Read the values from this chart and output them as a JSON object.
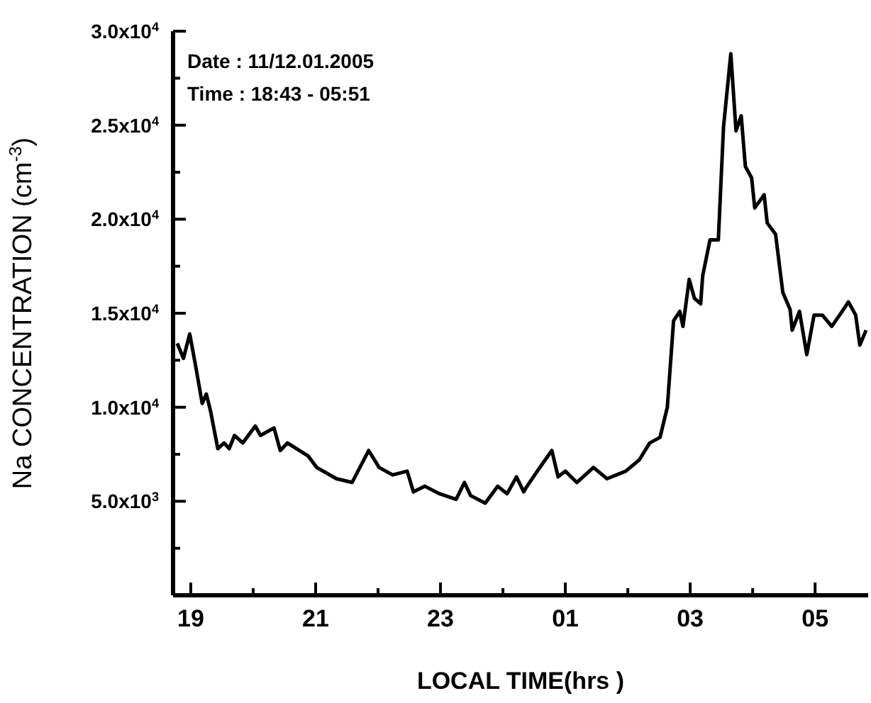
{
  "chart_data": {
    "type": "line",
    "xlabel": "LOCAL TIME(hrs )",
    "ylabel": "Na CONCENTRATION (cm$^{-3}$)",
    "annotations": [
      "Date : 11/12.01.2005",
      "Time : 18:43 - 05:51"
    ],
    "xlim": [
      "2005-01-11T18:43",
      "2005-01-12T05:51"
    ],
    "xticks": [
      {
        "value": "2005-01-11T19:00",
        "label": "19"
      },
      {
        "value": "2005-01-11T20:00",
        "label": null
      },
      {
        "value": "2005-01-11T21:00",
        "label": "21"
      },
      {
        "value": "2005-01-11T22:00",
        "label": null
      },
      {
        "value": "2005-01-11T23:00",
        "label": "23"
      },
      {
        "value": "2005-01-12T00:00",
        "label": null
      },
      {
        "value": "2005-01-12T01:00",
        "label": "01"
      },
      {
        "value": "2005-01-12T02:00",
        "label": null
      },
      {
        "value": "2005-01-12T03:00",
        "label": "03"
      },
      {
        "value": "2005-01-12T04:00",
        "label": null
      },
      {
        "value": "2005-01-12T05:00",
        "label": "05"
      }
    ],
    "ylim": [
      0,
      30000
    ],
    "yticks": [
      {
        "value": 2500,
        "label": null
      },
      {
        "value": 5000,
        "label": "5.0x10$^{3}$"
      },
      {
        "value": 7500,
        "label": null
      },
      {
        "value": 10000,
        "label": "1.0x10$^{4}$"
      },
      {
        "value": 12500,
        "label": null
      },
      {
        "value": 15000,
        "label": "1.5x10$^{4}$"
      },
      {
        "value": 17500,
        "label": null
      },
      {
        "value": 20000,
        "label": "2.0x10$^{4}$"
      },
      {
        "value": 22500,
        "label": null
      },
      {
        "value": 25000,
        "label": "2.5x10$^{4}$"
      },
      {
        "value": 27500,
        "label": null
      },
      {
        "value": 30000,
        "label": "3.0x10$^{4}$"
      }
    ],
    "marker": "none",
    "line_style": "solid",
    "series": [
      {
        "color": "#000000",
        "x": [
          "2005-01-11T18:47",
          "2005-01-11T18:53",
          "2005-01-11T18:59",
          "2005-01-11T19:05",
          "2005-01-11T19:11",
          "2005-01-11T19:15",
          "2005-01-11T19:19",
          "2005-01-11T19:26",
          "2005-01-11T19:32",
          "2005-01-11T19:37",
          "2005-01-11T19:42",
          "2005-01-11T19:50",
          "2005-01-11T20:02",
          "2005-01-11T20:07",
          "2005-01-11T20:20",
          "2005-01-11T20:26",
          "2005-01-11T20:33",
          "2005-01-11T20:53",
          "2005-01-11T21:01",
          "2005-01-11T21:20",
          "2005-01-11T21:35",
          "2005-01-11T21:51",
          "2005-01-11T22:01",
          "2005-01-11T22:14",
          "2005-01-11T22:28",
          "2005-01-11T22:34",
          "2005-01-11T22:45",
          "2005-01-11T22:59",
          "2005-01-11T23:15",
          "2005-01-11T23:23",
          "2005-01-11T23:29",
          "2005-01-11T23:43",
          "2005-01-11T23:55",
          "2005-01-12T00:04",
          "2005-01-12T00:13",
          "2005-01-12T00:20",
          "2005-01-12T00:22",
          "2005-01-12T00:33",
          "2005-01-12T00:47",
          "2005-01-12T00:53",
          "2005-01-12T01:00",
          "2005-01-12T01:11",
          "2005-01-12T01:27",
          "2005-01-12T01:40",
          "2005-01-12T01:58",
          "2005-01-12T02:11",
          "2005-01-12T02:21",
          "2005-01-12T02:31",
          "2005-01-12T02:38",
          "2005-01-12T02:44",
          "2005-01-12T02:50",
          "2005-01-12T02:53",
          "2005-01-12T02:59",
          "2005-01-12T03:04",
          "2005-01-12T03:10",
          "2005-01-12T03:12",
          "2005-01-12T03:19",
          "2005-01-12T03:27",
          "2005-01-12T03:32",
          "2005-01-12T03:39",
          "2005-01-12T03:44",
          "2005-01-12T03:49",
          "2005-01-12T03:53",
          "2005-01-12T03:59",
          "2005-01-12T04:02",
          "2005-01-12T04:11",
          "2005-01-12T04:14",
          "2005-01-12T04:22",
          "2005-01-12T04:29",
          "2005-01-12T04:36",
          "2005-01-12T04:38",
          "2005-01-12T04:45",
          "2005-01-12T04:52",
          "2005-01-12T04:59",
          "2005-01-12T05:07",
          "2005-01-12T05:16",
          "2005-01-12T05:26",
          "2005-01-12T05:32",
          "2005-01-12T05:39",
          "2005-01-12T05:43",
          "2005-01-12T05:49"
        ],
        "values": [
          13400,
          12600,
          13900,
          12100,
          10200,
          10700,
          9800,
          7800,
          8100,
          7800,
          8500,
          8100,
          9000,
          8500,
          8900,
          7700,
          8100,
          7400,
          6800,
          6200,
          6000,
          7700,
          6800,
          6400,
          6600,
          5500,
          5800,
          5400,
          5100,
          6000,
          5300,
          4900,
          5800,
          5400,
          6300,
          5500,
          5700,
          6600,
          7700,
          6300,
          6600,
          6000,
          6800,
          6200,
          6600,
          7200,
          8100,
          8400,
          10000,
          14600,
          15100,
          14300,
          16800,
          15800,
          15500,
          17000,
          18900,
          18900,
          24900,
          28800,
          24700,
          25500,
          22800,
          22200,
          20600,
          21300,
          19800,
          19200,
          16100,
          15200,
          14100,
          15100,
          12800,
          14900,
          14900,
          14300,
          15100,
          15600,
          14900,
          13300,
          14100
        ]
      }
    ]
  }
}
